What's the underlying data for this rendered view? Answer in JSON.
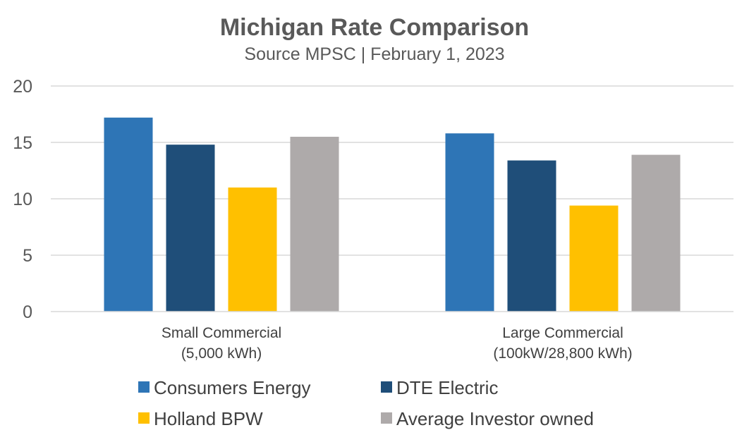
{
  "chart_data": {
    "type": "bar",
    "title": "Michigan Rate Comparison",
    "subtitle": "Source MPSC | February 1, 2023",
    "categories": [
      [
        "Small Commercial",
        "(5,000 kWh)"
      ],
      [
        "Large Commercial",
        "(100kW/28,800 kWh)"
      ]
    ],
    "series": [
      {
        "name": "Consumers Energy",
        "color": "#2E75B6",
        "values": [
          17.2,
          15.8
        ]
      },
      {
        "name": "DTE Electric",
        "color": "#1F4E79",
        "values": [
          14.8,
          13.4
        ]
      },
      {
        "name": "Holland BPW",
        "color": "#FFC000",
        "values": [
          11.0,
          9.4
        ]
      },
      {
        "name": "Average Investor owned",
        "color": "#AEAAAA",
        "values": [
          15.5,
          13.9
        ]
      }
    ],
    "yticks": [
      "0",
      "5",
      "10",
      "15",
      "20"
    ],
    "ylim": [
      0,
      20
    ],
    "xlabel": "",
    "ylabel": "",
    "grid": true,
    "legend_position": "bottom"
  }
}
